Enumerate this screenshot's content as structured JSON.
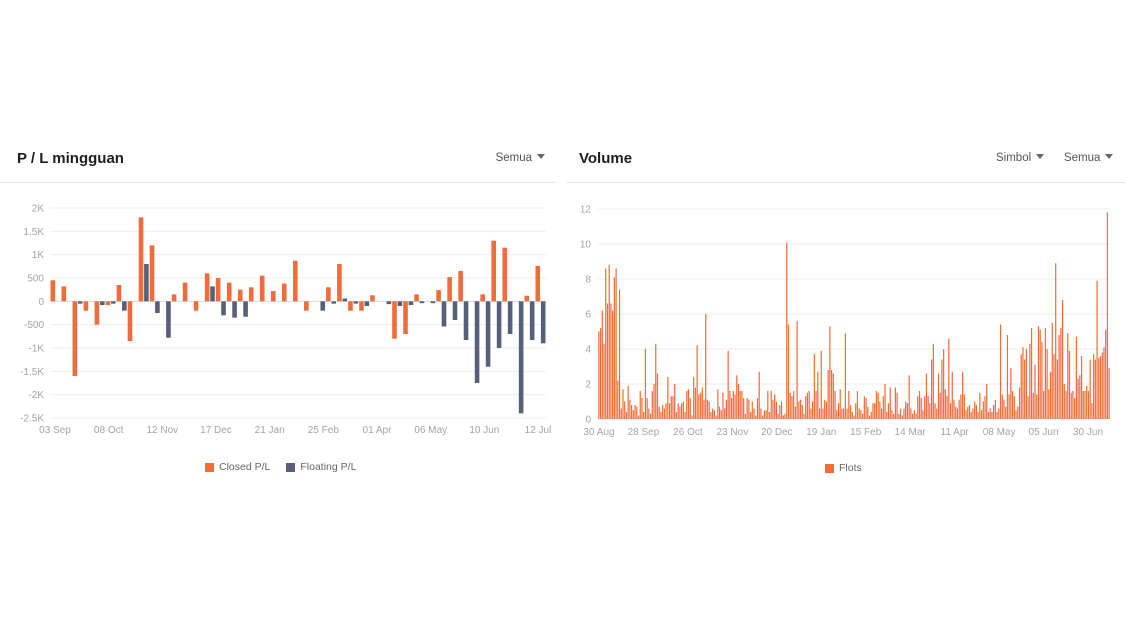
{
  "colors": {
    "closed": "#f26b3a",
    "floating": "#56607a",
    "lots": "#f26b3a",
    "grid": "#eeeeee"
  },
  "panels": {
    "pl": {
      "title": "P / L mingguan",
      "filter_label": "Semua"
    },
    "volume": {
      "title": "Volume",
      "filter_symbol_label": "Simbol",
      "filter_all_label": "Semua"
    }
  },
  "chart_data": [
    {
      "type": "bar",
      "title": "P / L mingguan",
      "ylim": [
        -2500,
        2000
      ],
      "y_ticks": [
        2000,
        1500,
        1000,
        500,
        0,
        -500,
        -1000,
        -1500,
        -2000,
        -2500
      ],
      "y_tick_labels": [
        "2K",
        "1.5K",
        "1K",
        "500",
        "0",
        "-500",
        "-1K",
        "-1.5K",
        "-2K",
        "-2.5K"
      ],
      "x_tick_labels": [
        "03 Sep",
        "08 Oct",
        "12 Nov",
        "17 Dec",
        "21 Jan",
        "25 Feb",
        "01 Apr",
        "06 May",
        "10 Jun",
        "12 Jul"
      ],
      "legend": "bottom-center",
      "grid": true,
      "series": [
        {
          "name": "Closed P/L",
          "values": [
            450,
            320,
            -1600,
            -200,
            -500,
            -80,
            350,
            -850,
            1800,
            1200,
            0,
            150,
            400,
            -200,
            600,
            500,
            400,
            250,
            300,
            550,
            220,
            380,
            870,
            -200,
            0,
            300,
            800,
            -200,
            -200,
            130,
            0,
            -800,
            -700,
            150,
            0,
            240,
            520,
            650,
            0,
            150,
            1300,
            1150,
            0,
            120,
            760
          ]
        },
        {
          "name": "Floating P/L",
          "values": [
            0,
            0,
            -50,
            0,
            -80,
            -50,
            -200,
            0,
            800,
            -250,
            -780,
            0,
            0,
            0,
            320,
            -300,
            -350,
            -330,
            0,
            0,
            0,
            0,
            0,
            0,
            -200,
            -50,
            60,
            -50,
            -100,
            0,
            -60,
            -100,
            -80,
            -40,
            -40,
            -540,
            -400,
            -830,
            -1750,
            -1400,
            -1000,
            -700,
            -2400,
            -830,
            -900
          ]
        }
      ]
    },
    {
      "type": "bar",
      "title": "Volume",
      "ylim": [
        0,
        12
      ],
      "y_ticks": [
        0,
        2,
        4,
        6,
        8,
        10,
        12
      ],
      "y_tick_labels": [
        "0",
        "2",
        "4",
        "6",
        "8",
        "10",
        "12"
      ],
      "x_tick_labels": [
        "30 Aug",
        "28 Sep",
        "26 Oct",
        "23 Nov",
        "20 Dec",
        "19 Jan",
        "15 Feb",
        "14 Mar",
        "11 Apr",
        "08 May",
        "05 Jun",
        "30 Jun"
      ],
      "legend": "bottom-center",
      "grid": true,
      "series": [
        {
          "name": "Flots",
          "values": [
            5.0,
            5.2,
            6.2,
            4.3,
            8.6,
            6.6,
            8.8,
            6.6,
            6.2,
            8.1,
            8.6,
            2.2,
            7.4,
            0.6,
            1.7,
            1.0,
            0.4,
            1.9,
            1.1,
            0.8,
            0.5,
            0.8,
            0.7,
            0.2,
            1.6,
            1.2,
            0.4,
            4.0,
            1.2,
            0.6,
            0.3,
            1.6,
            2.0,
            4.3,
            2.6,
            0.7,
            0.4,
            0.8,
            0.6,
            0.9,
            2.4,
            0.9,
            1.3,
            1.3,
            2.0,
            0.4,
            0.9,
            0.7,
            0.9,
            1.0,
            0.4,
            1.6,
            1.7,
            1.2,
            0.2,
            2.4,
            1.8,
            4.2,
            1.4,
            1.5,
            1.8,
            1.1,
            6.0,
            1.1,
            1.0,
            0.4,
            0.6,
            0.5,
            0.2,
            1.7,
            0.7,
            0.5,
            1.5,
            0.6,
            1.1,
            3.9,
            1.6,
            1.2,
            1.6,
            1.4,
            2.5,
            2.0,
            1.6,
            1.6,
            1.2,
            0.3,
            1.2,
            1.1,
            0.4,
            1.0,
            0.6,
            0.2,
            1.2,
            2.7,
            0.6,
            0.2,
            0.5,
            0.5,
            1.6,
            0.4,
            1.6,
            1.1,
            1.4,
            1.0,
            0.3,
            0.8,
            1.0,
            0.2,
            0.3,
            10.1,
            5.4,
            1.5,
            1.3,
            1.6,
            0.7,
            5.6,
            1.0,
            1.1,
            0.8,
            0.3,
            1.3,
            1.5,
            1.6,
            0.6,
            1.0,
            3.7,
            1.6,
            2.7,
            0.6,
            3.9,
            0.6,
            1.1,
            1.0,
            2.8,
            5.3,
            2.8,
            2.6,
            1.6,
            0.5,
            0.9,
            1.7,
            0.6,
            0.6,
            4.9,
            0.6,
            1.6,
            0.8,
            0.4,
            0.2,
            0.9,
            1.6,
            0.6,
            0.5,
            0.3,
            1.3,
            1.2,
            0.7,
            0.2,
            0.4,
            0.9,
            0.9,
            1.6,
            1.5,
            1.0,
            0.6,
            1.3,
            2.0,
            0.4,
            0.9,
            1.8,
            0.5,
            0.3,
            1.8,
            1.5,
            0.3,
            0.6,
            0.2,
            0.6,
            1.0,
            0.9,
            2.5,
            0.6,
            0.3,
            0.5,
            0.3,
            1.3,
            1.6,
            1.2,
            0.5,
            1.3,
            2.6,
            1.3,
            0.9,
            3.4,
            4.3,
            0.9,
            0.6,
            2.6,
            1.5,
            3.4,
            4.0,
            1.7,
            1.3,
            4.6,
            0.9,
            2.7,
            1.1,
            0.7,
            0.6,
            1.1,
            1.4,
            2.7,
            1.4,
            0.5,
            0.7,
            0.8,
            0.4,
            0.6,
            1.0,
            0.8,
            0.4,
            1.5,
            0.5,
            1.0,
            1.3,
            2.0,
            0.4,
            0.6,
            0.4,
            0.8,
            1.1,
            0.4,
            0.6,
            5.4,
            1.4,
            1.1,
            0.7,
            4.8,
            1.4,
            2.9,
            1.6,
            1.3,
            0.5,
            0.7,
            1.8,
            3.7,
            4.1,
            3.4,
            4.0,
            1.3,
            4.3,
            5.2,
            1.5,
            3.1,
            1.4,
            5.3,
            5.1,
            4.4,
            1.6,
            5.2,
            4.0,
            1.7,
            2.7,
            5.5,
            3.7,
            8.9,
            3.4,
            4.8,
            5.2,
            6.8,
            2.0,
            1.6,
            4.9,
            3.9,
            1.5,
            1.6,
            1.2,
            4.7,
            2.3,
            2.5,
            3.6,
            1.6,
            1.6,
            1.9,
            1.6,
            3.4,
            0.9,
            3.7,
            3.4,
            7.9,
            3.5,
            3.6,
            3.8,
            4.1,
            5.1,
            11.8,
            2.9
          ]
        }
      ]
    }
  ]
}
